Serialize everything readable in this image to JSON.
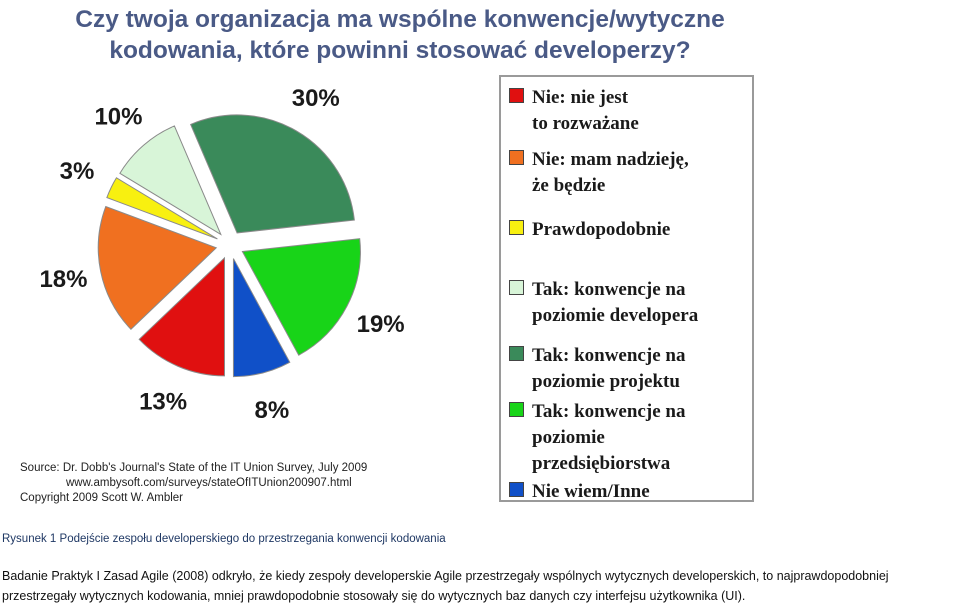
{
  "chart_data": {
    "type": "pie",
    "title": "Czy twoja organizacja ma wspólne konwencje/wytyczne\nkodowania, które powinni stosować developerzy?",
    "slices": [
      {
        "label": "Nie: nie jest\nto rozważane",
        "value": 13,
        "value_label": "13%",
        "color": "#e01010"
      },
      {
        "label": "Nie: mam nadzieję,\nże będzie",
        "value": 18,
        "value_label": "18%",
        "color": "#f07020"
      },
      {
        "label": "Prawdopodobnie",
        "value": 3,
        "value_label": "3%",
        "color": "#f8f010"
      },
      {
        "label": "Tak: konwencje na\npoziomie developera",
        "value": 10,
        "value_label": "10%",
        "color": "#d8f5d8"
      },
      {
        "label": "Tak: konwencje na\npoziomie projektu",
        "value": 30,
        "value_label": "30%",
        "color": "#3a8a5a"
      },
      {
        "label": "Tak: konwencje na\npoziomie\nprzedsiębiorstwa",
        "value": 19,
        "value_label": "19%",
        "color": "#18d418"
      },
      {
        "label": "Nie wiem/Inne",
        "value": 8,
        "value_label": "8%",
        "color": "#1050c8"
      }
    ],
    "legend_position": "right"
  },
  "source": {
    "line1": "Source: Dr. Dobb's Journal's State of the IT Union Survey, July 2009",
    "line2": "www.ambysoft.com/surveys/stateOfITUnion200907.html",
    "line3": "Copyright 2009 Scott W. Ambler"
  },
  "caption": "Rysunek 1 Podejście zespołu developerskiego do przestrzegania konwencji kodowania",
  "body_text": "Badanie Praktyk I Zasad Agile (2008) odkryło, że kiedy zespoły developerskie Agile przestrzegały wspólnych wytycznych developerskich, to najprawdopodobniej przestrzegały wytycznych kodowania, mniej prawdopodobnie stosowały się do wytycznych baz danych czy interfejsu użytkownika (UI)."
}
